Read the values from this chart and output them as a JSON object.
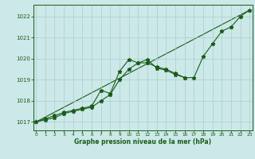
{
  "x": [
    0,
    1,
    2,
    3,
    4,
    5,
    6,
    7,
    8,
    9,
    10,
    11,
    12,
    13,
    14,
    15,
    16,
    17,
    18,
    19,
    20,
    21,
    22,
    23
  ],
  "line1": [
    1017.0,
    1017.1,
    1017.2,
    1017.4,
    1017.5,
    1017.6,
    1017.7,
    1018.0,
    1018.3,
    1019.0,
    1019.5,
    1019.8,
    1019.8,
    1019.6,
    1019.5,
    1019.3,
    1019.1,
    1019.1,
    1020.1,
    1020.7,
    1021.3,
    1021.5,
    1022.0,
    1022.3
  ],
  "line2": [
    1017.0,
    1017.15,
    1017.3,
    1017.45,
    1017.55,
    1017.65,
    1017.75,
    1018.5,
    1018.35,
    1019.4,
    1019.95,
    1019.8,
    1019.95,
    1019.55,
    1019.45,
    1019.25,
    1019.1,
    null,
    null,
    null,
    null,
    null,
    null,
    null
  ],
  "ylim": [
    1016.6,
    1022.55
  ],
  "yticks": [
    1017,
    1018,
    1019,
    1020,
    1021,
    1022
  ],
  "xticks": [
    0,
    1,
    2,
    3,
    4,
    5,
    6,
    7,
    8,
    9,
    10,
    11,
    12,
    13,
    14,
    15,
    16,
    17,
    18,
    19,
    20,
    21,
    22,
    23
  ],
  "line_color": "#1a5c1a",
  "bg_color": "#cce8e8",
  "grid_color": "#aacece",
  "xlabel": "Graphe pression niveau de la mer (hPa)",
  "xlabel_color": "#1a5c1a"
}
